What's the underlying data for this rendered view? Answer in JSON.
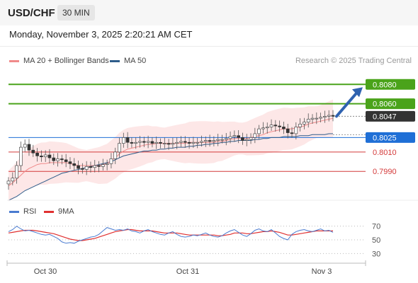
{
  "header": {
    "pair": "USD/CHF",
    "timeframe": "30 MIN",
    "datetime": "Monday, November 3, 2025 2:20:21 AM CET"
  },
  "legend": {
    "ma20_label": "MA 20 + Bollinger Bands",
    "ma50_label": "MA 50",
    "credit": "Research © 2025 Trading Central",
    "ma20_color": "#f08a8a",
    "ma50_color": "#2e5c8a"
  },
  "rsi_legend": {
    "rsi_label": "RSI",
    "ma_label": "9MA",
    "rsi_color": "#4a7bd0",
    "ma_color": "#e03030"
  },
  "chart_data": [
    {
      "type": "candlestick",
      "x_tick_labels": [
        "Oct 30",
        "Oct 31",
        "Nov 3"
      ],
      "ylim": [
        0.7955,
        0.81
      ],
      "current_price": 0.8047,
      "price_levels": [
        {
          "value": 0.808,
          "label": "0.8080",
          "kind": "resistance",
          "color": "#4aa31a"
        },
        {
          "value": 0.806,
          "label": "0.8060",
          "kind": "resistance",
          "color": "#4aa31a"
        },
        {
          "value": 0.8047,
          "label": "0.8047",
          "kind": "current",
          "color": "#333333"
        },
        {
          "value": 0.8025,
          "label": "0.8025",
          "kind": "pivot",
          "color": "#1f6fd6"
        },
        {
          "value": 0.801,
          "label": "0.8010",
          "kind": "support",
          "color": "#d43a3a"
        },
        {
          "value": 0.799,
          "label": "0.7990",
          "kind": "support",
          "color": "#d43a3a"
        }
      ],
      "annotation": "arrow up toward 0.8080",
      "close_series": [
        0.798,
        0.7983,
        0.7996,
        0.8015,
        0.8018,
        0.8012,
        0.8009,
        0.8006,
        0.8005,
        0.8007,
        0.8004,
        0.8001,
        0.8003,
        0.8002,
        0.8,
        0.7998,
        0.7996,
        0.7993,
        0.7992,
        0.7995,
        0.7994,
        0.7996,
        0.7995,
        0.7997,
        0.7998,
        0.8003,
        0.801,
        0.8019,
        0.8025,
        0.802,
        0.8019,
        0.802,
        0.8021,
        0.802,
        0.8021,
        0.8019,
        0.802,
        0.8019,
        0.8019,
        0.8018,
        0.8019,
        0.802,
        0.8021,
        0.802,
        0.8019,
        0.802,
        0.802,
        0.8021,
        0.8022,
        0.8021,
        0.8022,
        0.8023,
        0.8023,
        0.8024,
        0.8026,
        0.8027,
        0.8025,
        0.8022,
        0.8023,
        0.8025,
        0.8029,
        0.8034,
        0.8035,
        0.8036,
        0.8038,
        0.8037,
        0.8036,
        0.8034,
        0.803,
        0.8029,
        0.8036,
        0.8039,
        0.8041,
        0.8044,
        0.8045,
        0.8045,
        0.8046,
        0.8047,
        0.8048,
        0.8047
      ],
      "ma20": [
        0.7975,
        0.7978,
        0.7982,
        0.7986,
        0.799,
        0.7993,
        0.7995,
        0.7997,
        0.7998,
        0.7998,
        0.7999,
        0.7999,
        0.7999,
        0.7999,
        0.7999,
        0.7998,
        0.7997,
        0.7996,
        0.7996,
        0.7996,
        0.7996,
        0.7996,
        0.7996,
        0.7997,
        0.7998,
        0.8001,
        0.8004,
        0.8008,
        0.8011,
        0.8013,
        0.8014,
        0.8015,
        0.8016,
        0.8017,
        0.8018,
        0.8018,
        0.8019,
        0.8019,
        0.8019,
        0.8019,
        0.8019,
        0.8019,
        0.8019,
        0.8019,
        0.802,
        0.802,
        0.802,
        0.802,
        0.802,
        0.802,
        0.802,
        0.8021,
        0.8021,
        0.8022,
        0.8023,
        0.8024,
        0.8024,
        0.8024,
        0.8024,
        0.8025,
        0.8026,
        0.8027,
        0.8028,
        0.803,
        0.8031,
        0.8032,
        0.8033,
        0.8034,
        0.8034,
        0.8034,
        0.8035,
        0.8036,
        0.8037,
        0.8039,
        0.804,
        0.8041,
        0.8042,
        0.8043,
        0.8044,
        0.8045
      ],
      "ma50": [
        0.796,
        0.7962,
        0.7964,
        0.7967,
        0.797,
        0.7972,
        0.7974,
        0.7976,
        0.7978,
        0.798,
        0.7982,
        0.7984,
        0.7986,
        0.7988,
        0.7989,
        0.799,
        0.7991,
        0.7992,
        0.7993,
        0.7994,
        0.7995,
        0.7996,
        0.7997,
        0.7998,
        0.7999,
        0.8,
        0.8002,
        0.8004,
        0.8006,
        0.8007,
        0.8008,
        0.8009,
        0.801,
        0.8011,
        0.8011,
        0.8012,
        0.8012,
        0.8013,
        0.8013,
        0.8014,
        0.8014,
        0.8015,
        0.8015,
        0.8015,
        0.8016,
        0.8016,
        0.8017,
        0.8017,
        0.8018,
        0.8018,
        0.8019,
        0.8019,
        0.802,
        0.802,
        0.8021,
        0.8021,
        0.8022,
        0.8022,
        0.8022,
        0.8022,
        0.8023,
        0.8023,
        0.8024,
        0.8024,
        0.8025,
        0.8025,
        0.8025,
        0.8026,
        0.8026,
        0.8026,
        0.8026,
        0.8027,
        0.8027,
        0.8027,
        0.8028,
        0.8028,
        0.8028,
        0.8028,
        0.8029,
        0.8029
      ]
    },
    {
      "type": "line",
      "ylim": [
        20,
        80
      ],
      "y_tick_labels": [
        "70",
        "50",
        "30"
      ],
      "y_ticks": [
        70,
        50,
        30
      ],
      "series": [
        {
          "name": "RSI",
          "values": [
            62,
            65,
            70,
            66,
            63,
            64,
            62,
            60,
            58,
            57,
            58,
            55,
            52,
            47,
            45,
            46,
            45,
            48,
            50,
            52,
            54,
            55,
            58,
            63,
            68,
            66,
            64,
            65,
            64,
            66,
            63,
            62,
            60,
            63,
            65,
            62,
            60,
            58,
            57,
            60,
            62,
            58,
            55,
            54,
            55,
            57,
            56,
            58,
            60,
            57,
            55,
            54,
            56,
            60,
            63,
            65,
            61,
            57,
            55,
            59,
            64,
            66,
            63,
            62,
            65,
            60,
            55,
            52,
            50,
            58,
            62,
            64,
            65,
            63,
            62,
            64,
            66,
            63,
            64,
            61
          ]
        },
        {
          "name": "9MA",
          "values": [
            60,
            61,
            62,
            63,
            64,
            64,
            64,
            63,
            62,
            61,
            60,
            59,
            57,
            55,
            53,
            51,
            50,
            49,
            49,
            50,
            51,
            52,
            54,
            56,
            58,
            60,
            62,
            63,
            64,
            65,
            65,
            64,
            63,
            63,
            63,
            63,
            62,
            61,
            60,
            60,
            60,
            60,
            59,
            58,
            57,
            57,
            57,
            57,
            57,
            57,
            57,
            56,
            56,
            57,
            58,
            60,
            60,
            60,
            59,
            59,
            60,
            61,
            62,
            62,
            63,
            62,
            61,
            59,
            57,
            57,
            58,
            59,
            60,
            61,
            62,
            63,
            63,
            63,
            63,
            63
          ]
        }
      ]
    }
  ]
}
